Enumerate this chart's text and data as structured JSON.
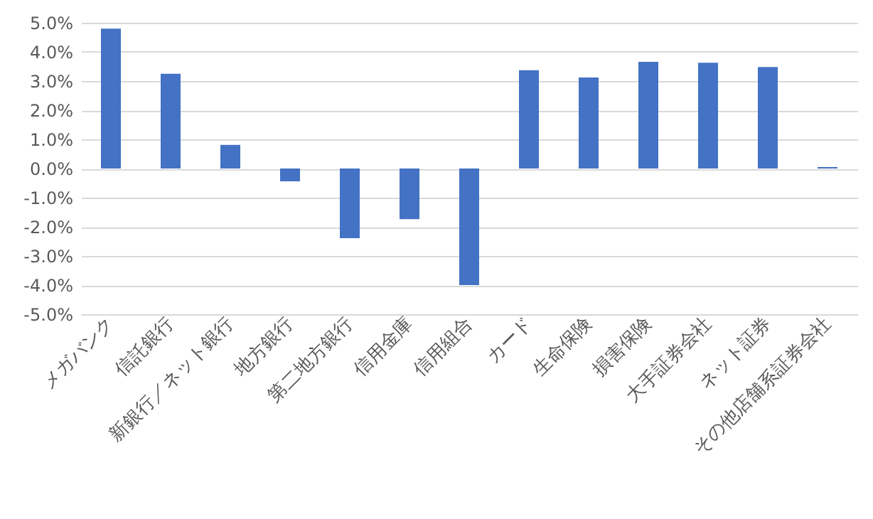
{
  "chart_data": {
    "type": "bar",
    "categories": [
      "メガバンク",
      "信託銀行",
      "新銀行／ネット銀行",
      "地方銀行",
      "第二地方銀行",
      "信用金庫",
      "信用組合",
      "カード",
      "生命保険",
      "損害保険",
      "大手証券会社",
      "ネット証券",
      "その他店舗系証券会社"
    ],
    "values": [
      4.8,
      3.25,
      0.81,
      -0.44,
      -2.39,
      -1.74,
      -4.0,
      3.37,
      3.12,
      3.66,
      3.63,
      3.48,
      0.05
    ],
    "color": "#4472c4",
    "ylim": [
      -5,
      5
    ],
    "yticks": [
      {
        "value": -5,
        "label": "-5.0%"
      },
      {
        "value": -4,
        "label": "-4.0%"
      },
      {
        "value": -3,
        "label": "-3.0%"
      },
      {
        "value": -2,
        "label": "-2.0%"
      },
      {
        "value": -1,
        "label": "-1.0%"
      },
      {
        "value": 0,
        "label": "0.0%"
      },
      {
        "value": 1,
        "label": "1.0%"
      },
      {
        "value": 2,
        "label": "2.0%"
      },
      {
        "value": 3,
        "label": "3.0%"
      },
      {
        "value": 4,
        "label": "4.0%"
      },
      {
        "value": 5,
        "label": "5.0%"
      }
    ],
    "grid": "y"
  }
}
